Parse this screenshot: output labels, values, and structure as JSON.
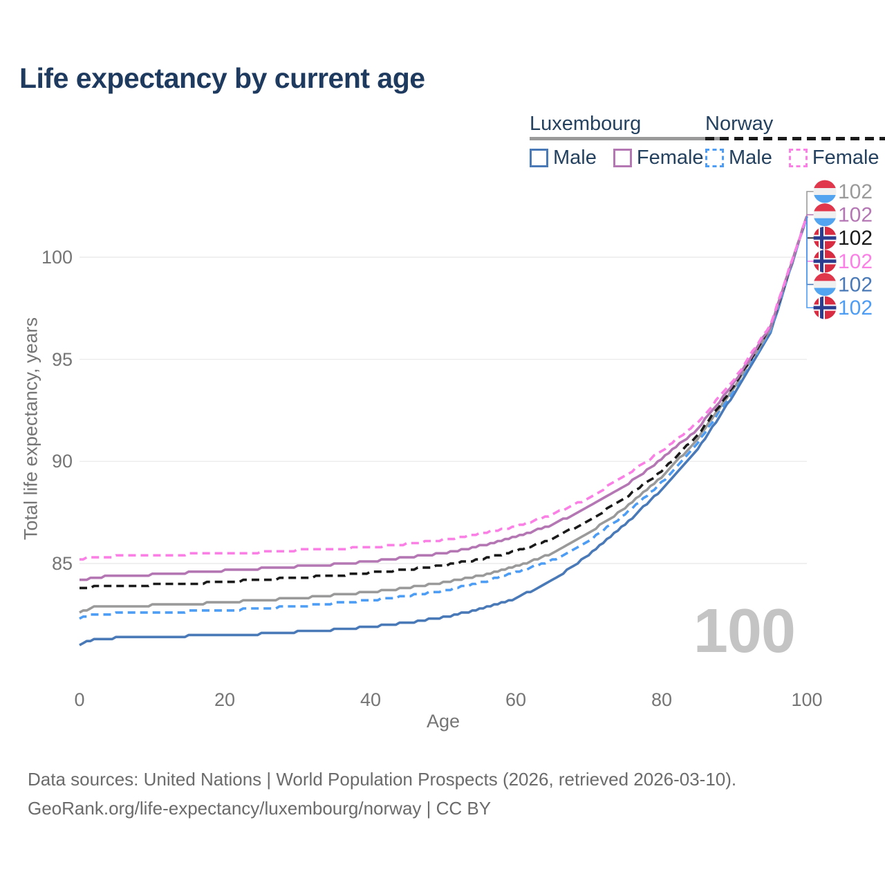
{
  "title": "Life expectancy by current age",
  "age_counter": "100",
  "legend": {
    "luxembourg": {
      "label": "Luxembourg",
      "male_label": "Male",
      "female_label": "Female",
      "line_style": "solid"
    },
    "norway": {
      "label": "Norway",
      "male_label": "Male",
      "female_label": "Female",
      "line_style": "dashed"
    }
  },
  "colors": {
    "luxembourg_male": "#4a79b8",
    "luxembourg_female": "#b477b4",
    "luxembourg_total": "#9a9a9a",
    "norway_male": "#4d9df5",
    "norway_female": "#fb80e5",
    "norway_total": "#1a1a1a",
    "title_text": "#1e3a5e",
    "axis_text": "#757575",
    "grid": "#ececec",
    "counter": "#c4c4c4",
    "lux_flag_red": "#e0374c",
    "lux_flag_white": "#f0f0f0",
    "lux_flag_blue": "#52a4f0",
    "norway_flag_red": "#d72c41",
    "norway_flag_blue": "#2c3d8f"
  },
  "end_labels": [
    {
      "flag": "luxembourg",
      "series": "luxembourg_total",
      "value": "102"
    },
    {
      "flag": "luxembourg",
      "series": "luxembourg_female",
      "value": "102"
    },
    {
      "flag": "norway",
      "series": "norway_total",
      "value": "102"
    },
    {
      "flag": "norway",
      "series": "norway_female",
      "value": "102"
    },
    {
      "flag": "luxembourg",
      "series": "luxembourg_male",
      "value": "102"
    },
    {
      "flag": "norway",
      "series": "norway_male",
      "value": "102"
    }
  ],
  "footer": {
    "line1": "Data sources: United Nations | World Population Prospects (2026, retrieved 2026-03-10).",
    "line2": "GeoRank.org/life-expectancy/luxembourg/norway | CC BY"
  },
  "chart_data": {
    "type": "line",
    "title": "Life expectancy by current age",
    "xlabel": "Age",
    "ylabel": "Total life expectancy, years",
    "xlim": [
      0,
      100
    ],
    "ylim": [
      80.5,
      103
    ],
    "xticks": [
      0,
      20,
      40,
      60,
      80,
      100
    ],
    "yticks": [
      85,
      90,
      95,
      100
    ],
    "grid": "horizontal",
    "legend_position": "top-right",
    "x": [
      0,
      2,
      5,
      10,
      15,
      20,
      25,
      30,
      35,
      40,
      45,
      50,
      55,
      60,
      65,
      70,
      75,
      80,
      85,
      90,
      95,
      100
    ],
    "series": [
      {
        "name": "Luxembourg Male",
        "key": "luxembourg_male",
        "line": "solid",
        "values": [
          81.0,
          81.3,
          81.35,
          81.4,
          81.45,
          81.5,
          81.55,
          81.65,
          81.75,
          81.9,
          82.1,
          82.35,
          82.75,
          83.3,
          84.15,
          85.4,
          86.9,
          88.6,
          90.6,
          93.3,
          96.3,
          102
        ]
      },
      {
        "name": "Norway Male",
        "key": "norway_male",
        "line": "dashed",
        "values": [
          82.3,
          82.5,
          82.55,
          82.6,
          82.65,
          82.7,
          82.8,
          82.9,
          83.05,
          83.2,
          83.4,
          83.65,
          84.05,
          84.55,
          85.15,
          86.1,
          87.4,
          88.95,
          90.9,
          93.5,
          96.4,
          102
        ]
      },
      {
        "name": "Luxembourg Total",
        "key": "luxembourg_total",
        "line": "solid",
        "values": [
          82.6,
          82.85,
          82.9,
          82.95,
          83.0,
          83.1,
          83.2,
          83.3,
          83.45,
          83.6,
          83.8,
          84.05,
          84.4,
          84.85,
          85.5,
          86.5,
          87.7,
          89.2,
          91.1,
          93.6,
          96.5,
          102
        ]
      },
      {
        "name": "Norway Total",
        "key": "norway_total",
        "line": "dashed",
        "values": [
          83.75,
          83.85,
          83.9,
          83.95,
          84.0,
          84.1,
          84.2,
          84.3,
          84.4,
          84.55,
          84.7,
          84.9,
          85.2,
          85.6,
          86.2,
          87.1,
          88.2,
          89.5,
          91.3,
          93.7,
          96.55,
          102
        ]
      },
      {
        "name": "Luxembourg Female",
        "key": "luxembourg_female",
        "line": "solid",
        "values": [
          84.15,
          84.3,
          84.4,
          84.45,
          84.55,
          84.65,
          84.75,
          84.85,
          84.95,
          85.1,
          85.3,
          85.5,
          85.85,
          86.3,
          86.9,
          87.75,
          88.8,
          90.1,
          91.6,
          93.85,
          96.6,
          102
        ]
      },
      {
        "name": "Norway Female",
        "key": "norway_female",
        "line": "dashed",
        "values": [
          85.2,
          85.3,
          85.35,
          85.4,
          85.45,
          85.5,
          85.55,
          85.65,
          85.7,
          85.8,
          85.95,
          86.15,
          86.45,
          86.8,
          87.4,
          88.2,
          89.3,
          90.5,
          91.9,
          94.0,
          96.7,
          102
        ]
      }
    ],
    "end_age": 100,
    "end_value": 102
  }
}
